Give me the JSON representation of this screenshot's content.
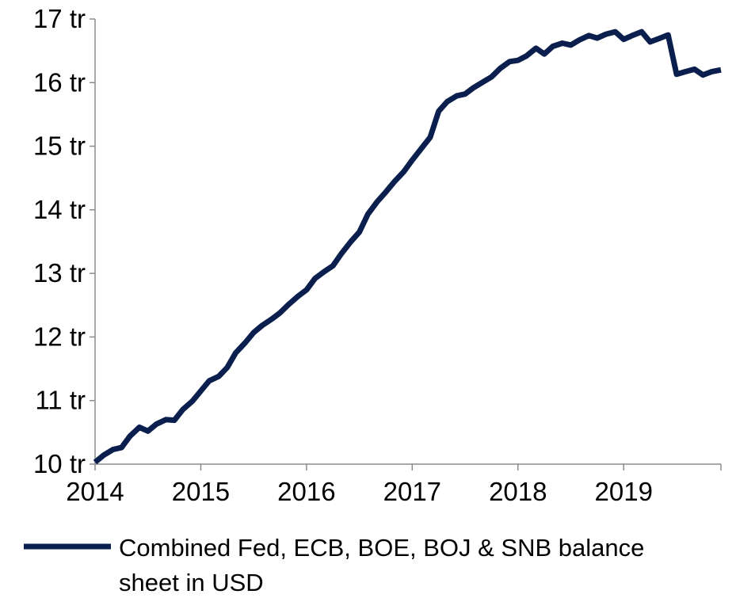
{
  "chart_data": {
    "type": "line",
    "title": "",
    "xlabel": "",
    "ylabel": "",
    "xlim": [
      2014,
      2019.92
    ],
    "ylim": [
      10,
      17
    ],
    "x_ticks": [
      2014,
      2015,
      2016,
      2017,
      2018,
      2019
    ],
    "x_tick_labels": [
      "2014",
      "2015",
      "2016",
      "2017",
      "2018",
      "2019"
    ],
    "y_ticks": [
      10,
      11,
      12,
      13,
      14,
      15,
      16,
      17
    ],
    "y_tick_labels": [
      "10 tr",
      "11 tr",
      "12 tr",
      "13 tr",
      "14 tr",
      "15 tr",
      "16 tr",
      "17 tr"
    ],
    "grid": false,
    "legend_position": "bottom",
    "legend_lines": [
      "Combined Fed, ECB, BOE, BOJ & SNB balance",
      "sheet in USD"
    ],
    "series": [
      {
        "name": "Combined Fed, ECB, BOE, BOJ & SNB balance sheet in USD",
        "color": "#0a1f4d",
        "x": [
          2014.0,
          2014.08,
          2014.17,
          2014.25,
          2014.33,
          2014.42,
          2014.5,
          2014.58,
          2014.67,
          2014.75,
          2014.83,
          2014.92,
          2015.0,
          2015.08,
          2015.17,
          2015.25,
          2015.33,
          2015.42,
          2015.5,
          2015.58,
          2015.67,
          2015.75,
          2015.83,
          2015.92,
          2016.0,
          2016.08,
          2016.17,
          2016.25,
          2016.33,
          2016.42,
          2016.5,
          2016.58,
          2016.67,
          2016.75,
          2016.83,
          2016.92,
          2017.0,
          2017.08,
          2017.17,
          2017.25,
          2017.33,
          2017.42,
          2017.5,
          2017.58,
          2017.67,
          2017.75,
          2017.83,
          2017.92,
          2018.0,
          2018.08,
          2018.17,
          2018.25,
          2018.33,
          2018.42,
          2018.5,
          2018.58,
          2018.67,
          2018.75,
          2018.83,
          2018.92,
          2019.0,
          2019.08,
          2019.17,
          2019.25,
          2019.33,
          2019.42,
          2019.5,
          2019.58,
          2019.67,
          2019.75,
          2019.83,
          2019.92
        ],
        "y": [
          10.03,
          10.14,
          10.23,
          10.26,
          10.44,
          10.58,
          10.52,
          10.63,
          10.7,
          10.69,
          10.86,
          10.99,
          11.15,
          11.31,
          11.38,
          11.52,
          11.75,
          11.91,
          12.07,
          12.18,
          12.28,
          12.38,
          12.51,
          12.64,
          12.74,
          12.92,
          13.03,
          13.12,
          13.31,
          13.5,
          13.65,
          13.93,
          14.13,
          14.28,
          14.44,
          14.6,
          14.78,
          14.95,
          15.14,
          15.55,
          15.7,
          15.79,
          15.82,
          15.92,
          16.01,
          16.09,
          16.22,
          16.33,
          16.35,
          16.42,
          16.54,
          16.45,
          16.57,
          16.62,
          16.59,
          16.67,
          16.74,
          16.7,
          16.76,
          16.8,
          16.68,
          16.74,
          16.8,
          16.64,
          16.69,
          16.75,
          16.13,
          16.17,
          16.21,
          16.12,
          16.17,
          16.2
        ]
      }
    ]
  }
}
